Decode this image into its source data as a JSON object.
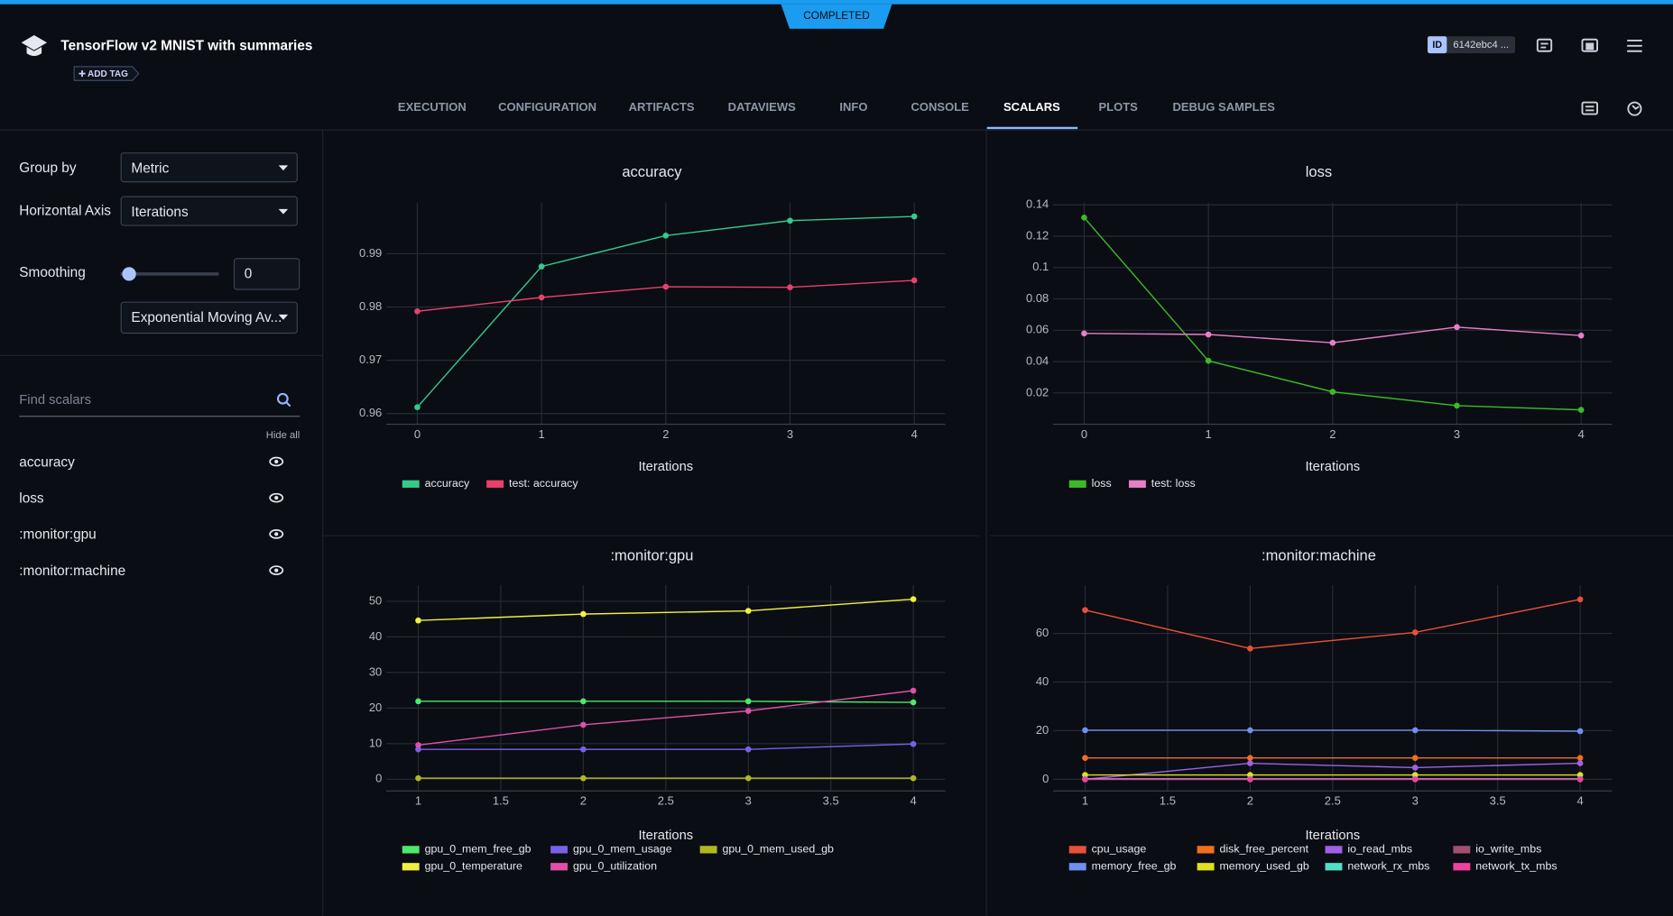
{
  "header": {
    "status": "COMPLETED",
    "title": "TensorFlow v2 MNIST with summaries",
    "add_tag": "ADD TAG",
    "id_label": "ID",
    "id": "6142ebc4 ..."
  },
  "tabs": [
    "EXECUTION",
    "CONFIGURATION",
    "ARTIFACTS",
    "DATAVIEWS",
    "INFO",
    "CONSOLE",
    "SCALARS",
    "PLOTS",
    "DEBUG SAMPLES"
  ],
  "sidebar": {
    "group_by_label": "Group by",
    "group_by": "Metric",
    "axis_label": "Horizontal Axis",
    "axis": "Iterations",
    "smoothing_label": "Smoothing",
    "smoothing": 0,
    "smoothing_method": "Exponential Moving Av...",
    "search_placeholder": "Find scalars",
    "hide_all": "Hide all",
    "scalars": [
      "accuracy",
      "loss",
      ":monitor:gpu",
      ":monitor:machine"
    ]
  },
  "chart_data": [
    {
      "type": "line",
      "title": "accuracy",
      "x_label": "Iterations",
      "x": [
        0,
        1,
        2,
        3,
        4
      ],
      "xlim": [
        -0.25,
        4.25
      ],
      "xticks": [
        0,
        1,
        2,
        3,
        4
      ],
      "ylim": [
        0.958,
        0.9996
      ],
      "yticks": [
        0.96,
        0.97,
        0.98,
        0.99
      ],
      "grid": true,
      "series": [
        {
          "name": "accuracy",
          "color": "#35c98c",
          "values": [
            0.9612,
            0.9876,
            0.9934,
            0.9962,
            0.997
          ]
        },
        {
          "name": "test: accuracy",
          "color": "#e8406a",
          "values": [
            0.9792,
            0.9818,
            0.9838,
            0.9837,
            0.985
          ]
        }
      ]
    },
    {
      "type": "line",
      "title": "loss",
      "x_label": "Iterations",
      "x": [
        0,
        1,
        2,
        3,
        4
      ],
      "xlim": [
        -0.25,
        4.25
      ],
      "xticks": [
        0,
        1,
        2,
        3,
        4
      ],
      "ylim": [
        0,
        0.1415
      ],
      "yticks": [
        0.02,
        0.04,
        0.06,
        0.08,
        0.1,
        0.12,
        0.14
      ],
      "grid": true,
      "series": [
        {
          "name": "loss",
          "color": "#3cba2a",
          "values": [
            0.1319,
            0.0405,
            0.0207,
            0.0119,
            0.0092
          ]
        },
        {
          "name": "test: loss",
          "color": "#e87ec8",
          "values": [
            0.058,
            0.0573,
            0.052,
            0.062,
            0.0566
          ]
        }
      ]
    },
    {
      "type": "line",
      "title": ":monitor:gpu",
      "x_label": "Iterations",
      "x": [
        1,
        2,
        3,
        4
      ],
      "xlim": [
        0.806,
        4.194
      ],
      "xticks": [
        1,
        1.5,
        2,
        2.5,
        3,
        3.5,
        4
      ],
      "ylim": [
        -3.3,
        54.5
      ],
      "yticks": [
        0,
        10,
        20,
        30,
        40,
        50
      ],
      "grid": true,
      "series": [
        {
          "name": "gpu_0_mem_free_gb",
          "color": "#4ee86a",
          "values": [
            21.9,
            21.9,
            21.9,
            21.6
          ]
        },
        {
          "name": "gpu_0_mem_usage",
          "color": "#7a60e8",
          "values": [
            8.4,
            8.4,
            8.4,
            9.9
          ]
        },
        {
          "name": "gpu_0_mem_used_gb",
          "color": "#b0b820",
          "values": [
            0.3,
            0.3,
            0.3,
            0.3
          ]
        },
        {
          "name": "gpu_0_temperature",
          "color": "#f0f040",
          "values": [
            44.6,
            46.4,
            47.3,
            50.6
          ]
        },
        {
          "name": "gpu_0_utilization",
          "color": "#e050a8",
          "values": [
            9.6,
            15.3,
            19.2,
            24.9
          ]
        }
      ]
    },
    {
      "type": "line",
      "title": ":monitor:machine",
      "x_label": "Iterations",
      "x": [
        1,
        2,
        3,
        4
      ],
      "xlim": [
        0.806,
        4.194
      ],
      "xticks": [
        1,
        1.5,
        2,
        2.5,
        3,
        3.5,
        4
      ],
      "ylim": [
        -4.8,
        79.8
      ],
      "yticks": [
        0,
        20,
        40,
        60
      ],
      "grid": true,
      "series": [
        {
          "name": "cpu_usage",
          "color": "#e8503a",
          "values": [
            69.6,
            53.8,
            60.4,
            74
          ]
        },
        {
          "name": "disk_free_percent",
          "color": "#f07020",
          "values": [
            8.8,
            8.8,
            8.8,
            8.8
          ]
        },
        {
          "name": "io_read_mbs",
          "color": "#a060e8",
          "values": [
            0,
            6.6,
            4.8,
            6.6
          ]
        },
        {
          "name": "io_write_mbs",
          "color": "#a05070",
          "values": [
            0,
            0,
            0,
            0
          ]
        },
        {
          "name": "memory_free_gb",
          "color": "#7090f0",
          "values": [
            20.2,
            20.2,
            20.2,
            19.8
          ]
        },
        {
          "name": "memory_used_gb",
          "color": "#e0e020",
          "values": [
            1.8,
            1.8,
            1.8,
            1.8
          ]
        },
        {
          "name": "network_rx_mbs",
          "color": "#50e0c8",
          "values": [
            0.2,
            0.2,
            0.2,
            0.2
          ]
        },
        {
          "name": "network_tx_mbs",
          "color": "#f040a0",
          "values": [
            0,
            0,
            0,
            0
          ]
        }
      ]
    }
  ]
}
